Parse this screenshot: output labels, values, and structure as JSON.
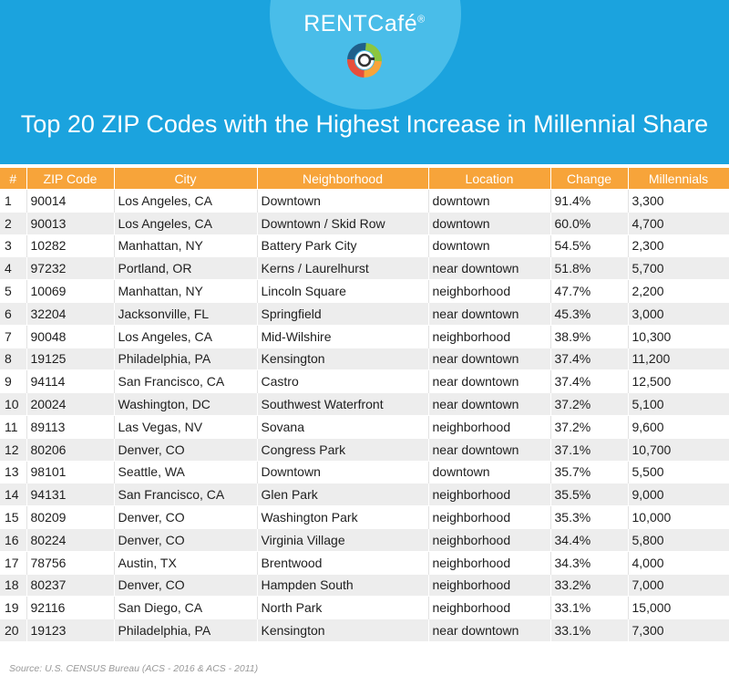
{
  "brand": {
    "name": "RENTCafé",
    "mark": "®"
  },
  "title": "Top 20 ZIP Codes with the Highest Increase in Millennial Share",
  "colors": {
    "header_bg": "#1ba3de",
    "logo_circle": "#49bde9",
    "table_header": "#f7a43a",
    "row_alt": "#ededed"
  },
  "chart_data": {
    "type": "table",
    "title": "Top 20 ZIP Codes with the Highest Increase in Millennial Share",
    "columns": [
      "#",
      "ZIP Code",
      "City",
      "Neighborhood",
      "Location",
      "Change",
      "Millennials"
    ],
    "rows": [
      [
        "1",
        "90014",
        "Los Angeles, CA",
        "Downtown",
        "downtown",
        "91.4%",
        "3,300"
      ],
      [
        "2",
        "90013",
        "Los Angeles, CA",
        "Downtown / Skid Row",
        "downtown",
        "60.0%",
        "4,700"
      ],
      [
        "3",
        "10282",
        "Manhattan, NY",
        "Battery Park City",
        "downtown",
        "54.5%",
        "2,300"
      ],
      [
        "4",
        "97232",
        "Portland, OR",
        "Kerns / Laurelhurst",
        "near downtown",
        "51.8%",
        "5,700"
      ],
      [
        "5",
        "10069",
        "Manhattan, NY",
        "Lincoln Square",
        "neighborhood",
        "47.7%",
        "2,200"
      ],
      [
        "6",
        "32204",
        "Jacksonville, FL",
        "Springfield",
        "near downtown",
        "45.3%",
        "3,000"
      ],
      [
        "7",
        "90048",
        "Los Angeles, CA",
        "Mid-Wilshire",
        "neighborhood",
        "38.9%",
        "10,300"
      ],
      [
        "8",
        "19125",
        "Philadelphia, PA",
        "Kensington",
        "near downtown",
        "37.4%",
        "11,200"
      ],
      [
        "9",
        "94114",
        "San Francisco, CA",
        "Castro",
        "near downtown",
        "37.4%",
        "12,500"
      ],
      [
        "10",
        "20024",
        "Washington, DC",
        "Southwest Waterfront",
        "near downtown",
        "37.2%",
        "5,100"
      ],
      [
        "11",
        "89113",
        "Las Vegas, NV",
        "Sovana",
        "neighborhood",
        "37.2%",
        "9,600"
      ],
      [
        "12",
        "80206",
        "Denver, CO",
        "Congress Park",
        "near downtown",
        "37.1%",
        "10,700"
      ],
      [
        "13",
        "98101",
        "Seattle, WA",
        "Downtown",
        "downtown",
        "35.7%",
        "5,500"
      ],
      [
        "14",
        "94131",
        "San Francisco, CA",
        "Glen Park",
        "neighborhood",
        "35.5%",
        "9,000"
      ],
      [
        "15",
        "80209",
        "Denver, CO",
        "Washington Park",
        "neighborhood",
        "35.3%",
        "10,000"
      ],
      [
        "16",
        "80224",
        "Denver, CO",
        "Virginia Village",
        "neighborhood",
        "34.4%",
        "5,800"
      ],
      [
        "17",
        "78756",
        "Austin, TX",
        "Brentwood",
        "neighborhood",
        "34.3%",
        "4,000"
      ],
      [
        "18",
        "80237",
        "Denver, CO",
        "Hampden South",
        "neighborhood",
        "33.2%",
        "7,000"
      ],
      [
        "19",
        "92116",
        "San Diego, CA",
        "North Park",
        "neighborhood",
        "33.1%",
        "15,000"
      ],
      [
        "20",
        "19123",
        "Philadelphia, PA",
        "Kensington",
        "near downtown",
        "33.1%",
        "7,300"
      ]
    ]
  },
  "source": "Source: U.S. CENSUS Bureau (ACS - 2016 & ACS - 2011)"
}
